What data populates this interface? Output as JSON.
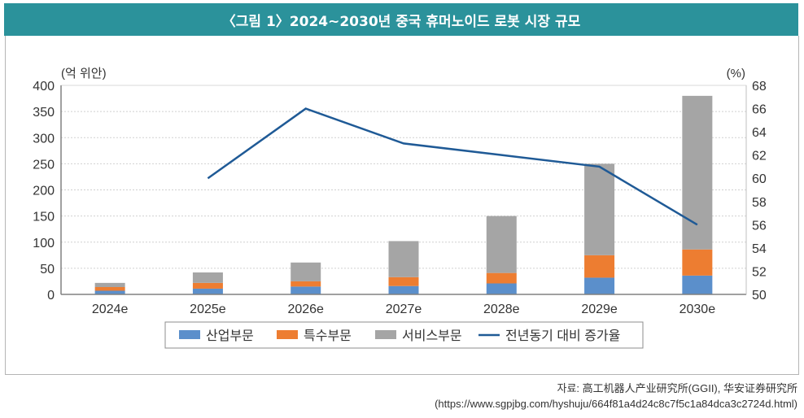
{
  "title": "〈그림 1〉2024~2030년 중국 휴머노이드 로봇 시장 규모",
  "source": {
    "line1": "자료: 高工机器人产业研究所(GGII), 华安证券研究所",
    "line2": "(https://www.sgpjbg.com/hyshuju/664f81a4d24c8c7f5c1a84dca3c2724d.html)"
  },
  "colors": {
    "header": "#2b929b",
    "industrial": "#5b8fcb",
    "special": "#ed7d31",
    "service": "#a5a5a5",
    "line": "#1f5a96"
  },
  "chart_data": {
    "type": "bar",
    "stacked": true,
    "title": "2024~2030년 중국 휴머노이드 로봇 시장 규모",
    "ylabel_left": "(억 위안)",
    "ylabel_right": "(%)",
    "categories": [
      "2024e",
      "2025e",
      "2026e",
      "2027e",
      "2028e",
      "2029e",
      "2030e"
    ],
    "ylim_left": [
      0,
      400
    ],
    "yticks_left": [
      "0",
      "50",
      "100",
      "150",
      "200",
      "250",
      "300",
      "350",
      "400"
    ],
    "ylim_right": [
      50,
      68
    ],
    "yticks_right": [
      "50",
      "52",
      "54",
      "56",
      "58",
      "60",
      "62",
      "64",
      "66",
      "68"
    ],
    "grid": true,
    "legend_position": "bottom",
    "series": [
      {
        "name": "산업부문",
        "type": "bar",
        "axis": "left",
        "values": [
          7,
          11,
          15,
          16,
          21,
          32,
          36
        ]
      },
      {
        "name": "특수부문",
        "type": "bar",
        "axis": "left",
        "values": [
          7,
          11,
          10,
          17,
          20,
          43,
          50
        ]
      },
      {
        "name": "서비스부문",
        "type": "bar",
        "axis": "left",
        "values": [
          8,
          20,
          36,
          69,
          109,
          175,
          294
        ]
      },
      {
        "name": "전년동기 대비 증가율",
        "type": "line",
        "axis": "right",
        "values": [
          null,
          60,
          66,
          63,
          62,
          61,
          56
        ]
      }
    ]
  }
}
